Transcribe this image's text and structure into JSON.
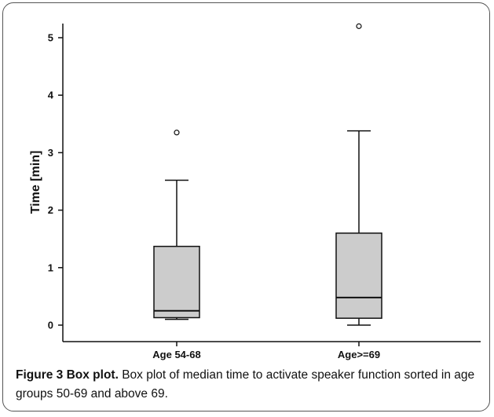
{
  "chart_data": {
    "type": "box",
    "ylabel": "Time [min]",
    "xlabel": "",
    "ylim": [
      0,
      5.2
    ],
    "yticks": [
      "0",
      "1",
      "2",
      "3",
      "4",
      "5"
    ],
    "categories": [
      "Age 54-68",
      "Age>=69"
    ],
    "boxes": [
      {
        "category": "Age 54-68",
        "min": 0.1,
        "q1": 0.13,
        "median": 0.25,
        "q3": 1.37,
        "max": 2.52,
        "outliers": [
          3.35
        ]
      },
      {
        "category": "Age>=69",
        "min": 0.0,
        "q1": 0.12,
        "median": 0.48,
        "q3": 1.6,
        "max": 3.38,
        "outliers": [
          5.2
        ]
      }
    ],
    "box_color": "#cccccc"
  },
  "caption": {
    "label": "Figure 3 Box plot.",
    "text": " Box plot of median time to activate speaker function sorted in age groups 50-69 and above 69."
  }
}
